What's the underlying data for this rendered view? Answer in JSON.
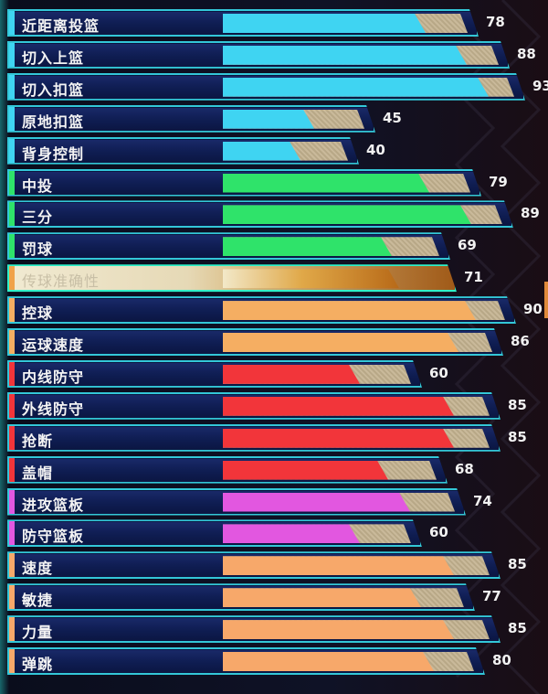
{
  "attributes": [
    {
      "label": "近距离投篮",
      "value": "78",
      "level": 78,
      "color": "#3fd4f2",
      "selected": false
    },
    {
      "label": "切入上篮",
      "value": "88",
      "level": 88,
      "color": "#3fd4f2",
      "selected": false
    },
    {
      "label": "切入扣篮",
      "value": "93",
      "level": 93,
      "color": "#3fd4f2",
      "selected": false
    },
    {
      "label": "原地扣篮",
      "value": "45",
      "level": 45,
      "color": "#3fd4f2",
      "selected": false
    },
    {
      "label": "背身控制",
      "value": "40",
      "level": 40,
      "color": "#3fd4f2",
      "selected": false
    },
    {
      "label": "中投",
      "value": "79",
      "level": 79,
      "color": "#2fe36a",
      "selected": false
    },
    {
      "label": "三分",
      "value": "89",
      "level": 89,
      "color": "#2fe36a",
      "selected": false
    },
    {
      "label": "罚球",
      "value": "69",
      "level": 69,
      "color": "#2fe36a",
      "selected": false
    },
    {
      "label": "传球准确性",
      "value": "71",
      "level": 71,
      "color": "#f0a24a",
      "selected": true
    },
    {
      "label": "控球",
      "value": "90",
      "level": 90,
      "color": "#f5ae62",
      "selected": false
    },
    {
      "label": "运球速度",
      "value": "86",
      "level": 86,
      "color": "#f5ae62",
      "selected": false
    },
    {
      "label": "内线防守",
      "value": "60",
      "level": 60,
      "color": "#f2353a",
      "selected": false
    },
    {
      "label": "外线防守",
      "value": "85",
      "level": 85,
      "color": "#f2353a",
      "selected": false
    },
    {
      "label": "抢断",
      "value": "85",
      "level": 85,
      "color": "#f2353a",
      "selected": false
    },
    {
      "label": "盖帽",
      "value": "68",
      "level": 68,
      "color": "#f2353a",
      "selected": false
    },
    {
      "label": "进攻篮板",
      "value": "74",
      "level": 74,
      "color": "#e257e0",
      "selected": false
    },
    {
      "label": "防守篮板",
      "value": "60",
      "level": 60,
      "color": "#e257e0",
      "selected": false
    },
    {
      "label": "速度",
      "value": "85",
      "level": 85,
      "color": "#f7a86a",
      "selected": false
    },
    {
      "label": "敏捷",
      "value": "77",
      "level": 77,
      "color": "#f7a86a",
      "selected": false
    },
    {
      "label": "力量",
      "value": "85",
      "level": 85,
      "color": "#f7a86a",
      "selected": false
    },
    {
      "label": "弹跳",
      "value": "80",
      "level": 80,
      "color": "#f7a86a",
      "selected": false
    }
  ],
  "group_accents": [
    "#3fd4f2",
    "#2fe36a",
    "#f0a24a",
    "#f2353a",
    "#e257e0",
    "#f7a86a"
  ]
}
